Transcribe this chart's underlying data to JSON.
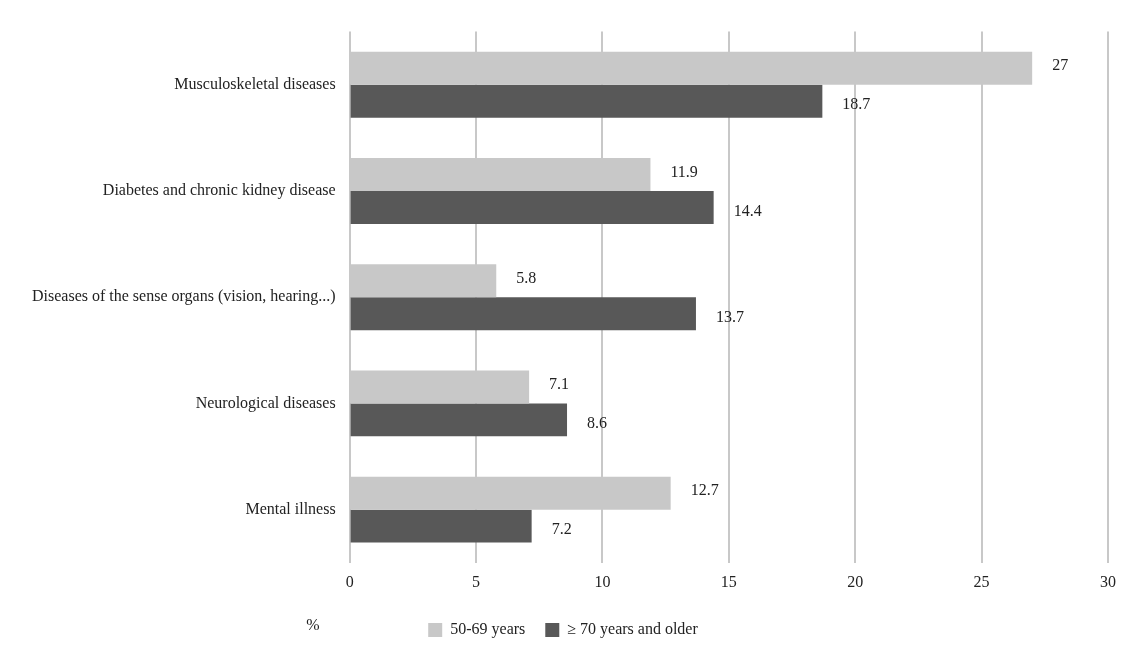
{
  "chart_data": {
    "type": "bar",
    "orientation": "horizontal",
    "categories": [
      "Musculoskeletal diseases",
      "Diabetes and chronic kidney disease",
      "Diseases of the sense organs (vision, hearing...)",
      "Neurological diseases",
      "Mental illness"
    ],
    "series": [
      {
        "name": "50-69 years",
        "color": "#c8c8c8",
        "values": [
          27,
          11.9,
          5.8,
          7.1,
          12.7
        ]
      },
      {
        "name": "≥ 70 years and older",
        "color": "#585858",
        "values": [
          18.7,
          14.4,
          13.7,
          8.6,
          7.2
        ]
      }
    ],
    "xlabel": "%",
    "xlim": [
      0,
      30
    ],
    "xticks": [
      0,
      5,
      10,
      15,
      20,
      25,
      30
    ],
    "grid": "x",
    "legend": "bottom",
    "data_labels": true
  }
}
